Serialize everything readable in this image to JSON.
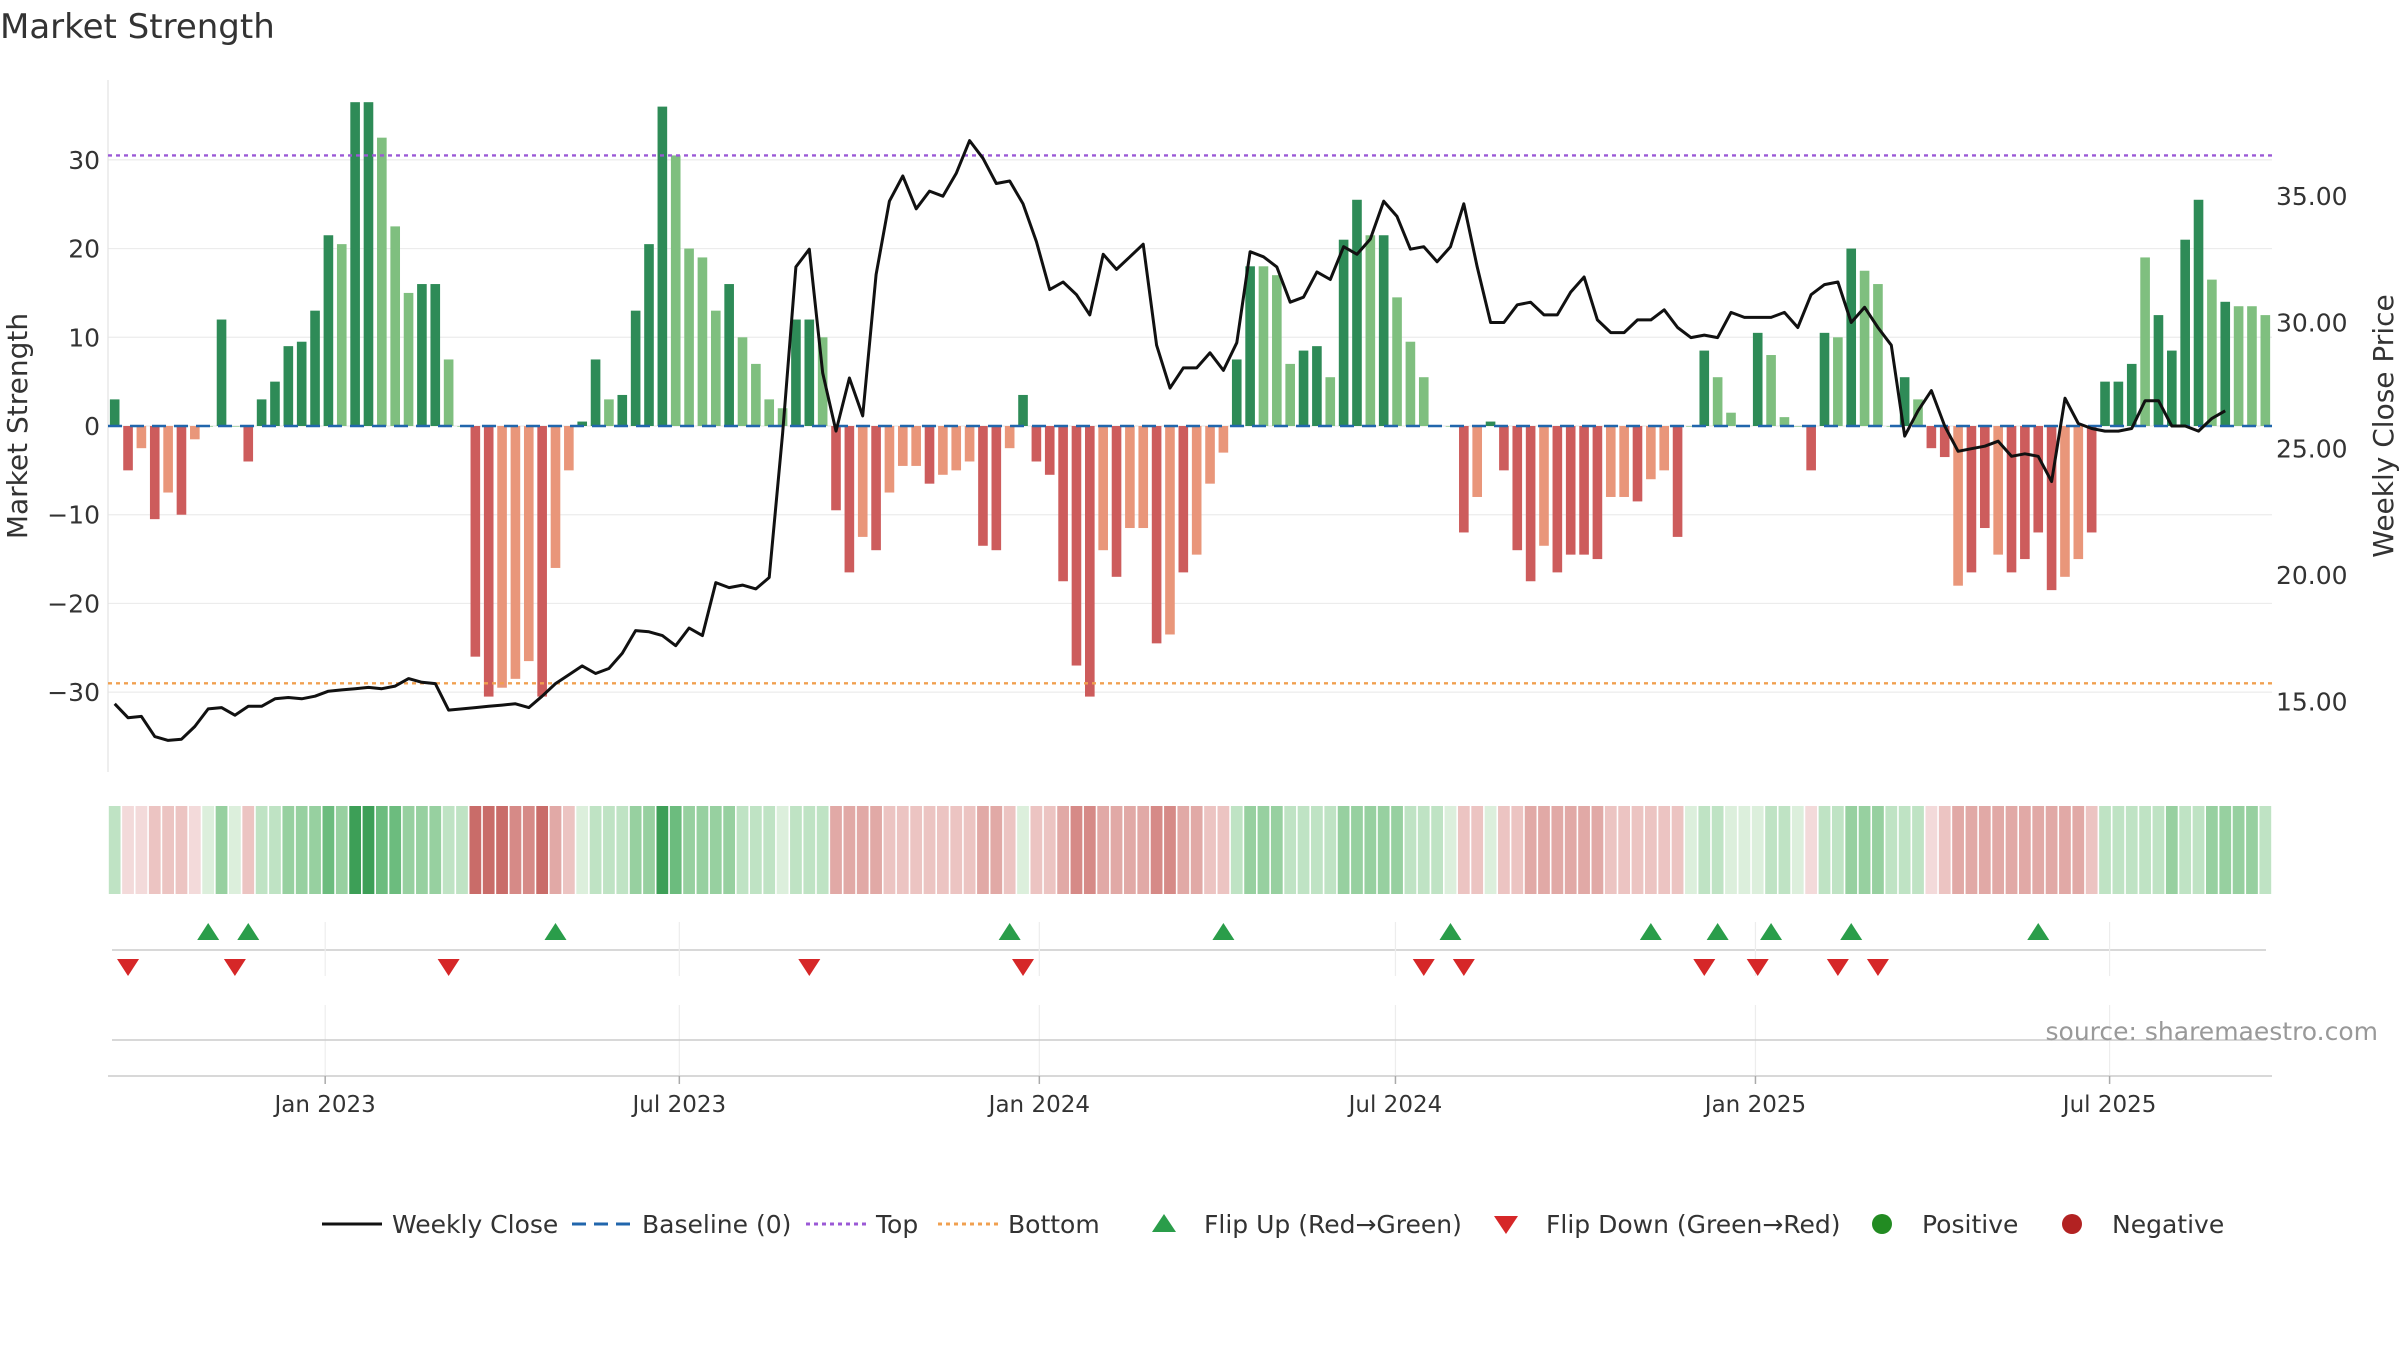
{
  "chart_data": {
    "type": "bar",
    "title": "Market Strength",
    "ylabel_left": "Market Strength",
    "ylabel_right": "Weekly Close Price",
    "source": "source: sharemaestro.com",
    "x_start": "2022-09-12",
    "x_end": "2025-09-22",
    "x_tick_labels": [
      {
        "date": "2023-01-01",
        "label": "Jan 2023"
      },
      {
        "date": "2023-07-01",
        "label": "Jul 2023"
      },
      {
        "date": "2024-01-01",
        "label": "Jan 2024"
      },
      {
        "date": "2024-07-01",
        "label": "Jul 2024"
      },
      {
        "date": "2025-01-01",
        "label": "Jan 2025"
      },
      {
        "date": "2025-07-01",
        "label": "Jul 2025"
      }
    ],
    "y_left": {
      "range": [
        -39,
        39
      ],
      "ticks": [
        30,
        20,
        10,
        0,
        -10,
        -20,
        -30
      ],
      "tick_labels": [
        "30",
        "20",
        "10",
        "0",
        "−10",
        "−20",
        "−30"
      ]
    },
    "y_right": {
      "range": [
        12.2,
        39.6
      ],
      "ticks": [
        35,
        30,
        25,
        20,
        15
      ],
      "tick_labels": [
        "35.00",
        "30.00",
        "25.00",
        "20.00",
        "15.00"
      ]
    },
    "reference_lines": {
      "baseline": 0,
      "top": 30.5,
      "bottom": -29
    },
    "grid": true,
    "colors": {
      "pos_strong": "#2e8b57",
      "pos_light": "#7fbf7f",
      "neg_strong": "#cd5c5c",
      "neg_light": "#e9967a",
      "close_line": "#111111",
      "baseline": "#2166ac",
      "top_line": "#9b59d6",
      "bottom_line": "#f0a050",
      "flip_up": "#2a9d4a",
      "flip_down": "#d62728",
      "positive_dot": "#228b22",
      "negative_dot": "#b22222"
    },
    "strength": [
      3,
      -5,
      -2.5,
      -10.5,
      -7.5,
      -10,
      -1.5,
      0,
      12,
      0,
      -4,
      3,
      5,
      9,
      9.5,
      13,
      21.5,
      20.5,
      36.5,
      36.5,
      32.5,
      22.5,
      15,
      16,
      16,
      7.5,
      0,
      -26,
      -30.5,
      -29.5,
      -28.5,
      -26.5,
      -30.5,
      -16,
      -5,
      0.5,
      7.5,
      3,
      3.5,
      13,
      20.5,
      36,
      30.5,
      20,
      19,
      13,
      16,
      10,
      7,
      3,
      2,
      12,
      12,
      10,
      -9.5,
      -16.5,
      -12.5,
      -14,
      -7.5,
      -4.5,
      -4.5,
      -6.5,
      -5.5,
      -5,
      -4,
      -13.5,
      -14,
      -2.5,
      3.5,
      -4,
      -5.5,
      -17.5,
      -27,
      -30.5,
      -14,
      -17,
      -11.5,
      -11.5,
      -24.5,
      -23.5,
      -16.5,
      -14.5,
      -6.5,
      -3,
      7.5,
      18,
      18,
      17,
      7,
      8.5,
      9,
      5.5,
      21,
      25.5,
      21.5,
      21.5,
      14.5,
      9.5,
      5.5,
      0,
      0,
      -12,
      -8,
      0.5,
      -5,
      -14,
      -17.5,
      -13.5,
      -16.5,
      -14.5,
      -14.5,
      -15,
      -8,
      -8,
      -8.5,
      -6,
      -5,
      -12.5,
      0,
      8.5,
      5.5,
      1.5,
      0,
      10.5,
      8,
      1,
      0,
      -5,
      10.5,
      10,
      20,
      17.5,
      16,
      0,
      5.5,
      3,
      -2.5,
      -3.5,
      -18,
      -16.5,
      -11.5,
      -14.5,
      -16.5,
      -15,
      -12,
      -18.5,
      -17,
      -15,
      -12,
      5,
      5,
      7,
      19,
      12.5,
      8.5,
      21,
      25.5,
      16.5,
      14,
      13.5,
      13.5,
      12.5
    ],
    "strength_shade": [
      1,
      1,
      0,
      1,
      0,
      1,
      0,
      0,
      1,
      0,
      1,
      1,
      1,
      1,
      1,
      1,
      1,
      0,
      1,
      1,
      0,
      0,
      0,
      1,
      1,
      0,
      0,
      1,
      1,
      0,
      0,
      0,
      1,
      0,
      0,
      1,
      1,
      0,
      1,
      1,
      1,
      1,
      0,
      0,
      0,
      0,
      1,
      0,
      0,
      0,
      0,
      1,
      1,
      0,
      1,
      1,
      0,
      1,
      0,
      0,
      0,
      1,
      0,
      0,
      0,
      1,
      1,
      0,
      1,
      1,
      1,
      1,
      1,
      1,
      0,
      1,
      0,
      0,
      1,
      0,
      1,
      0,
      0,
      0,
      1,
      1,
      0,
      0,
      0,
      1,
      1,
      0,
      1,
      1,
      0,
      1,
      0,
      0,
      0,
      0,
      0,
      1,
      0,
      1,
      1,
      1,
      1,
      0,
      1,
      1,
      1,
      1,
      0,
      0,
      1,
      0,
      0,
      1,
      0,
      1,
      0,
      0,
      0,
      1,
      0,
      0,
      0,
      1,
      1,
      0,
      1,
      0,
      0,
      0,
      1,
      0,
      1,
      1,
      0,
      1,
      1,
      0,
      1,
      1,
      1,
      1,
      0,
      0,
      1,
      1,
      1,
      1,
      0,
      1,
      1,
      1,
      1,
      0,
      1,
      0,
      0,
      0,
      0,
      0
    ],
    "weekly_close": [
      14.9,
      14.35,
      14.4,
      13.6,
      13.45,
      13.5,
      14,
      14.7,
      14.75,
      14.45,
      14.8,
      14.8,
      15.1,
      15.15,
      15.1,
      15.2,
      15.4,
      15.45,
      15.5,
      15.55,
      15.5,
      15.6,
      15.9,
      15.75,
      15.7,
      14.65,
      14.7,
      14.75,
      14.8,
      14.85,
      14.9,
      14.75,
      15.2,
      15.7,
      16.05,
      16.4,
      16.1,
      16.3,
      16.9,
      17.8,
      17.75,
      17.6,
      17.2,
      17.9,
      17.6,
      19.7,
      19.5,
      19.6,
      19.45,
      19.9,
      25.6,
      32.2,
      32.9,
      28,
      25.7,
      27.8,
      26.3,
      31.9,
      34.8,
      35.8,
      34.5,
      35.2,
      35,
      35.9,
      37.2,
      36.5,
      35.5,
      35.6,
      34.7,
      33.2,
      31.3,
      31.6,
      31.1,
      30.3,
      32.7,
      32.1,
      32.6,
      33.1,
      29.1,
      27.4,
      28.2,
      28.2,
      28.8,
      28.1,
      29.2,
      32.8,
      32.6,
      32.2,
      30.8,
      31,
      32,
      31.7,
      33,
      32.7,
      33.3,
      34.8,
      34.2,
      32.9,
      33,
      32.4,
      33,
      34.7,
      32.2,
      30,
      30,
      30.7,
      30.8,
      30.3,
      30.3,
      31.2,
      31.8,
      30.1,
      29.6,
      29.6,
      30.1,
      30.1,
      30.5,
      29.8,
      29.4,
      29.5,
      29.4,
      30.4,
      30.2,
      30.2,
      30.2,
      30.4,
      29.8,
      31.1,
      31.5,
      31.6,
      30,
      30.6,
      29.8,
      29.1,
      25.5,
      26.5,
      27.3,
      25.9,
      24.9,
      25,
      25.1,
      25.3,
      24.7,
      24.8,
      24.7,
      23.7,
      27,
      26,
      25.8,
      25.7,
      25.7,
      25.8,
      26.9,
      26.9,
      25.9,
      25.9,
      25.7,
      26.2,
      26.5
    ],
    "heat_band": [
      2,
      1,
      1,
      2,
      2,
      2,
      1,
      1,
      3,
      1,
      2,
      2,
      2,
      3,
      3,
      3,
      4,
      3,
      5,
      5,
      4,
      4,
      3,
      3,
      3,
      2,
      2,
      5,
      5,
      5,
      4,
      4,
      5,
      3,
      2,
      1,
      2,
      2,
      2,
      3,
      3,
      5,
      4,
      3,
      3,
      3,
      3,
      2,
      2,
      2,
      1,
      2,
      2,
      2,
      3,
      3,
      3,
      3,
      2,
      2,
      2,
      2,
      2,
      2,
      2,
      3,
      3,
      2,
      1,
      2,
      2,
      3,
      4,
      4,
      3,
      3,
      3,
      3,
      4,
      4,
      3,
      3,
      2,
      2,
      2,
      3,
      3,
      3,
      2,
      2,
      2,
      2,
      3,
      3,
      3,
      3,
      3,
      2,
      2,
      2,
      1,
      2,
      2,
      1,
      2,
      2,
      3,
      3,
      3,
      3,
      3,
      3,
      2,
      2,
      2,
      2,
      2,
      2,
      1,
      2,
      2,
      1,
      1,
      1,
      2,
      2,
      1,
      1,
      2,
      2,
      3,
      3,
      3,
      2,
      2,
      2,
      1,
      2,
      3,
      3,
      3,
      3,
      3,
      3,
      3,
      3,
      3,
      3,
      2,
      2,
      2,
      2,
      2,
      2,
      3,
      2,
      2,
      3,
      3,
      3,
      3,
      2,
      2,
      2,
      2,
      2
    ],
    "flip_up_weeks": [
      7,
      10,
      33,
      67,
      83,
      100,
      115,
      120,
      124,
      130,
      144
    ],
    "flip_down_weeks": [
      1,
      9,
      25,
      52,
      68,
      98,
      101,
      119,
      123,
      129,
      132
    ],
    "legend": [
      {
        "kind": "line",
        "label": "Weekly Close"
      },
      {
        "kind": "dash",
        "label": "Baseline (0)"
      },
      {
        "kind": "dot-line-top",
        "label": "Top"
      },
      {
        "kind": "dot-line-bottom",
        "label": "Bottom"
      },
      {
        "kind": "tri-up",
        "label": "Flip Up (Red→Green)"
      },
      {
        "kind": "tri-down",
        "label": "Flip Down (Green→Red)"
      },
      {
        "kind": "dot-pos",
        "label": "Positive"
      },
      {
        "kind": "dot-neg",
        "label": "Negative"
      }
    ]
  }
}
